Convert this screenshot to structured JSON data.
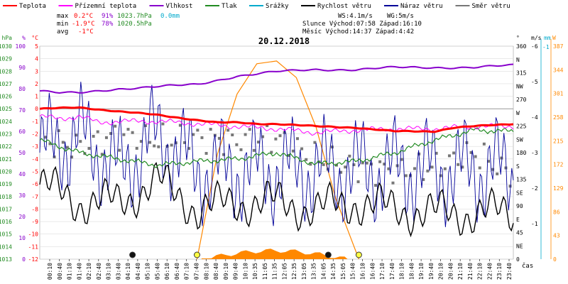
{
  "chart_data": {
    "type": "line",
    "title": "20.12.2018",
    "x_unit_label": "čas",
    "x_ticks": [
      "00:10",
      "00:40",
      "01:10",
      "01:40",
      "02:10",
      "02:40",
      "03:10",
      "03:40",
      "04:10",
      "04:40",
      "05:10",
      "05:40",
      "06:10",
      "06:40",
      "07:10",
      "07:40",
      "08:10",
      "08:40",
      "09:10",
      "09:40",
      "10:10",
      "10:35",
      "11:05",
      "11:35",
      "12:05",
      "12:35",
      "13:05",
      "13:35",
      "14:05",
      "14:35",
      "15:05",
      "15:40",
      "16:10",
      "16:40",
      "17:10",
      "17:40",
      "18:10",
      "18:40",
      "19:10",
      "19:40",
      "20:10",
      "20:40",
      "21:10",
      "21:40",
      "22:10",
      "22:40",
      "23:10",
      "23:40"
    ],
    "legend": [
      {
        "label": "Teplota",
        "color": "#ff0000"
      },
      {
        "label": "Přízemní teplota",
        "color": "#ff00ff"
      },
      {
        "label": "Vlhkost",
        "color": "#8800cc"
      },
      {
        "label": "Tlak",
        "color": "#228b22"
      },
      {
        "label": "Srážky",
        "color": "#00aacc"
      },
      {
        "label": "Rychlost větru",
        "color": "#000000"
      },
      {
        "label": "Náraz větru",
        "color": "#000099"
      },
      {
        "label": "Směr větru",
        "color": "#777777"
      }
    ],
    "stats": {
      "max": {
        "label": "max",
        "temp": "0.2°C",
        "hum": "91%",
        "press": "1023.7hPa",
        "rain": "0.0mm"
      },
      "min": {
        "label": "min",
        "temp": "-1.9°C",
        "hum": "78%",
        "press": "1020.5hPa"
      },
      "avg": {
        "label": "avg",
        "temp": "-1°C"
      },
      "ws": "WS:4.1m/s",
      "wg": "WG:5m/s",
      "sun": "Slunce Východ:07:58  Západ:16:10",
      "moon": "Měsíc  Východ:14:37  Západ:4:42"
    },
    "axes": {
      "hpa": {
        "title": "hPa",
        "color": "#228b22",
        "ticks": [
          "1030",
          "1029",
          "1028",
          "1027",
          "1026",
          "1025",
          "1024",
          "1023",
          "1022",
          "1021",
          "1020",
          "1019",
          "1018",
          "1017",
          "1016",
          "1015",
          "1014",
          "1013"
        ]
      },
      "pct": {
        "title": "%",
        "color": "#8800cc",
        "ticks": [
          "100",
          "90",
          "80",
          "70",
          "60",
          "50",
          "40",
          "30",
          "20",
          "10",
          "0"
        ]
      },
      "celsius": {
        "title": "°C",
        "color": "#ff0000",
        "ticks": [
          "5",
          "4",
          "3",
          "2",
          "1",
          "0",
          "-1",
          "-2",
          "-3",
          "-4",
          "-5",
          "-6",
          "-7",
          "-8",
          "-9",
          "-10",
          "-11",
          "-12"
        ]
      },
      "deg": {
        "title": "°",
        "ticks": [
          "360",
          "N",
          "315",
          "NW",
          "270",
          "W",
          "225",
          "SW",
          "180",
          "S",
          "135",
          "SE",
          "90",
          "E",
          "45",
          "NE",
          "0"
        ]
      },
      "ms": {
        "title": "m/s",
        "ticks": [
          "-6",
          "-5",
          "-4",
          "-3",
          "-2",
          "-1"
        ]
      },
      "mm": {
        "title": "mm",
        "ticks": [
          "-1"
        ]
      },
      "w": {
        "title": "W",
        "color": "#ff8800",
        "ticks": [
          "387",
          "344",
          "301",
          "258",
          "215",
          "172",
          "129",
          "86",
          "43",
          "0"
        ]
      }
    },
    "series": [
      {
        "name": "Teplota",
        "unit": "°C",
        "x": [
          0,
          2,
          4,
          6,
          8,
          9,
          10,
          11,
          12,
          14,
          16,
          18,
          20,
          21,
          22,
          23,
          24
        ],
        "y": [
          0.0,
          0.1,
          -0.2,
          -0.5,
          -0.9,
          -1.1,
          -1.1,
          -1.2,
          -1.2,
          -1.4,
          -1.5,
          -1.8,
          -1.8,
          -1.5,
          -1.4,
          -1.3,
          -1.2
        ]
      },
      {
        "name": "Přízemní teplota",
        "unit": "°C",
        "x": [
          0,
          1,
          2,
          3,
          4,
          6,
          8,
          10,
          12,
          14,
          16,
          18,
          20,
          22,
          24
        ],
        "y": [
          -0.6,
          -0.8,
          -0.6,
          -1.1,
          -1.0,
          -1.0,
          -1.2,
          -1.4,
          -1.6,
          -1.9,
          -1.7,
          -1.6,
          -1.6,
          -1.4,
          -1.4
        ]
      },
      {
        "name": "Vlhkost",
        "unit": "%",
        "x": [
          0,
          1,
          2,
          3,
          4,
          6,
          8,
          10,
          12,
          14,
          16,
          18,
          20,
          22,
          24
        ],
        "y": [
          79,
          78,
          78,
          79,
          80,
          81,
          82,
          86,
          88,
          89,
          89,
          90,
          90,
          90,
          91
        ]
      },
      {
        "name": "Tlak",
        "unit": "hPa",
        "x": [
          0,
          2,
          4,
          6,
          8,
          10,
          12,
          14,
          16,
          18,
          20,
          22,
          24
        ],
        "y": [
          1022.5,
          1021.5,
          1021.0,
          1020.5,
          1020.8,
          1021.0,
          1021.5,
          1020.6,
          1020.8,
          1021.5,
          1022.5,
          1023.3,
          1023.2
        ]
      },
      {
        "name": "Rychlost větru",
        "unit": "m/s",
        "x": [
          0,
          2,
          4,
          6,
          8,
          10,
          12,
          14,
          16,
          18,
          20,
          22,
          24
        ],
        "y": [
          2.1,
          1.6,
          1.6,
          2.2,
          1.4,
          1.6,
          1.6,
          1.4,
          1.6,
          1.4,
          1.3,
          1.3,
          1.3
        ]
      },
      {
        "name": "Náraz větru",
        "unit": "m/s",
        "x": [
          0,
          2,
          4,
          6,
          8,
          10,
          12,
          14,
          16,
          18,
          20,
          22,
          24
        ],
        "y": [
          3.0,
          3.5,
          2.5,
          3.5,
          2.5,
          2.5,
          2.5,
          2.5,
          2.5,
          2.5,
          2.5,
          2.5,
          2.5
        ]
      },
      {
        "name": "Směr větru",
        "unit": "°",
        "x": [
          0,
          2,
          4,
          6,
          8,
          10,
          12,
          14,
          16,
          18,
          20,
          22,
          24
        ],
        "y": [
          200,
          190,
          210,
          200,
          205,
          200,
          205,
          170,
          155,
          150,
          155,
          180,
          140
        ]
      },
      {
        "name": "Sluneční záření",
        "unit": "W",
        "x": [
          7.97,
          9,
          10,
          11,
          12,
          13,
          14,
          15,
          16.17
        ],
        "y": [
          0,
          190,
          300,
          355,
          360,
          330,
          240,
          110,
          0
        ]
      }
    ],
    "markers": [
      {
        "label": "moonset",
        "time": 4.7
      },
      {
        "label": "sunrise",
        "time": 7.97
      },
      {
        "label": "moonrise",
        "time": 14.62
      },
      {
        "label": "sunset",
        "time": 16.17
      }
    ]
  }
}
